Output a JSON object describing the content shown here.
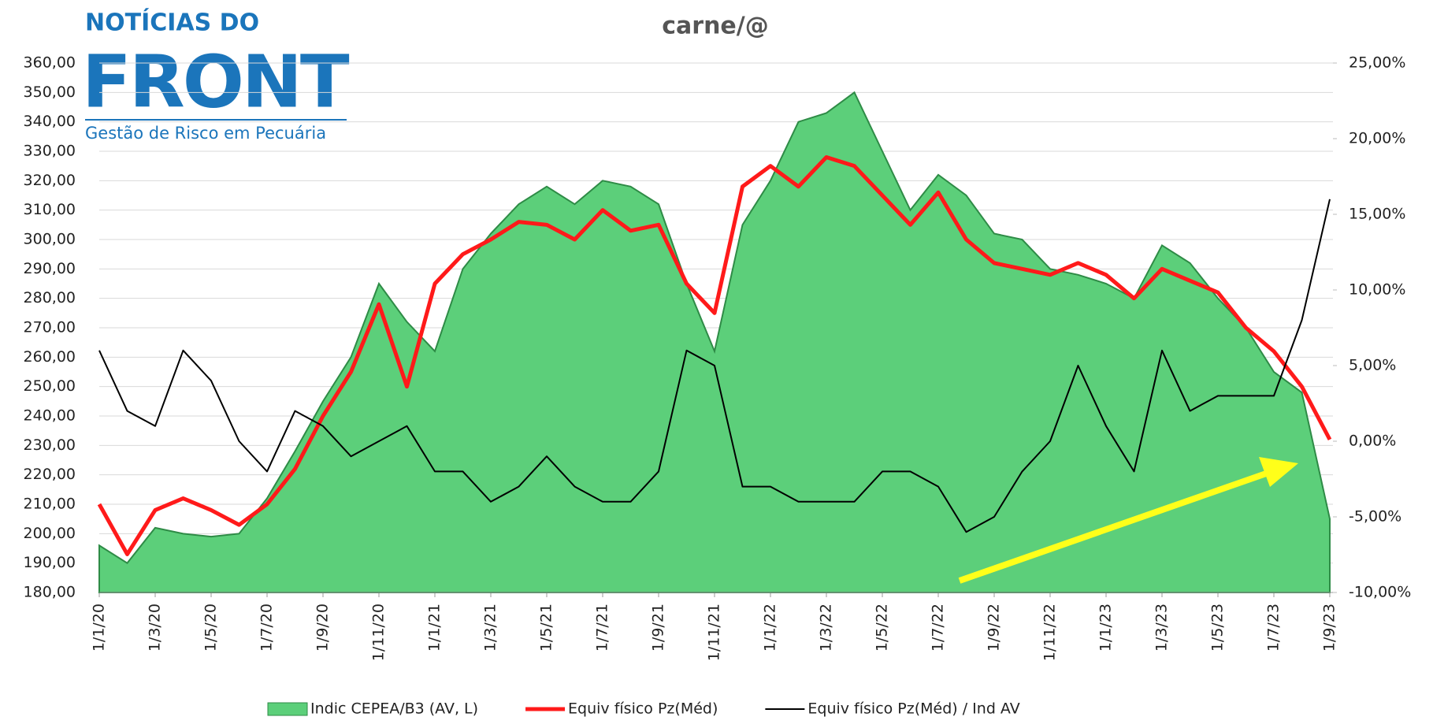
{
  "logo": {
    "top": "NOTÍCIAS DO",
    "brand": "FRONT",
    "tagline": "Gestão de Risco em Pecuária"
  },
  "chart_data": {
    "type": "line",
    "title": "carne/@",
    "categories": [
      "1/1/20",
      null,
      "1/3/20",
      null,
      "1/5/20",
      null,
      "1/7/20",
      null,
      "1/9/20",
      null,
      "1/11/20",
      null,
      "1/1/21",
      null,
      "1/3/21",
      null,
      "1/5/21",
      null,
      "1/7/21",
      null,
      "1/9/21",
      null,
      "1/11/21",
      null,
      "1/1/22",
      null,
      "1/3/22",
      null,
      "1/5/22",
      null,
      "1/7/22",
      null,
      "1/9/22",
      null,
      "1/11/22",
      null,
      "1/1/23",
      null,
      "1/3/23",
      null,
      "1/5/23",
      null,
      "1/7/23",
      null,
      "1/9/23"
    ],
    "series": [
      {
        "name": "Indic CEPEA/B3 (AV, L)",
        "kind": "area",
        "color": "#5ccf7a",
        "values": [
          196,
          190,
          202,
          200,
          199,
          200,
          212,
          228,
          245,
          260,
          285,
          272,
          262,
          290,
          302,
          312,
          318,
          312,
          320,
          318,
          312,
          285,
          262,
          305,
          320,
          340,
          343,
          350,
          330,
          310,
          322,
          315,
          302,
          300,
          290,
          288,
          285,
          280,
          298,
          292,
          280,
          270,
          255,
          248,
          205
        ]
      },
      {
        "name": "Equiv físico Pz(Méd)",
        "kind": "line",
        "color": "#ff1a1a",
        "values": [
          210,
          193,
          208,
          212,
          208,
          203,
          210,
          222,
          240,
          255,
          278,
          250,
          285,
          295,
          300,
          306,
          305,
          300,
          310,
          303,
          305,
          285,
          275,
          318,
          325,
          318,
          328,
          325,
          315,
          305,
          316,
          300,
          292,
          290,
          288,
          292,
          288,
          280,
          290,
          286,
          282,
          270,
          262,
          250,
          232
        ]
      },
      {
        "name": "Equiv físico Pz(Méd) / Ind AV",
        "kind": "line",
        "axis": "y2",
        "color": "#000000",
        "values": [
          6,
          2,
          1,
          6,
          4,
          0,
          -2,
          2,
          1,
          -1,
          0,
          1,
          -2,
          -2,
          -4,
          -3,
          -1,
          -3,
          -4,
          -4,
          -2,
          6,
          5,
          -3,
          -3,
          -4,
          -4,
          -4,
          -2,
          -2,
          -3,
          -6,
          -5,
          -2,
          0,
          5,
          1,
          -2,
          6,
          2,
          3,
          3,
          3,
          8,
          16
        ]
      }
    ],
    "ylim": [
      180,
      360
    ],
    "yticks": [
      {
        "value": 180,
        "label": "180,00"
      },
      {
        "value": 190,
        "label": "190,00"
      },
      {
        "value": 200,
        "label": "200,00"
      },
      {
        "value": 210,
        "label": "210,00"
      },
      {
        "value": 220,
        "label": "220,00"
      },
      {
        "value": 230,
        "label": "230,00"
      },
      {
        "value": 240,
        "label": "240,00"
      },
      {
        "value": 250,
        "label": "250,00"
      },
      {
        "value": 260,
        "label": "260,00"
      },
      {
        "value": 270,
        "label": "270,00"
      },
      {
        "value": 280,
        "label": "280,00"
      },
      {
        "value": 290,
        "label": "290,00"
      },
      {
        "value": 300,
        "label": "300,00"
      },
      {
        "value": 310,
        "label": "310,00"
      },
      {
        "value": 320,
        "label": "320,00"
      },
      {
        "value": 330,
        "label": "330,00"
      },
      {
        "value": 340,
        "label": "340,00"
      },
      {
        "value": 350,
        "label": "350,00"
      },
      {
        "value": 360,
        "label": "360,00"
      }
    ],
    "y2lim": [
      -10,
      25
    ],
    "y2ticks": [
      {
        "value": -10,
        "label": "-10,00%"
      },
      {
        "value": -5,
        "label": "-5,00%"
      },
      {
        "value": 0,
        "label": "0,00%"
      },
      {
        "value": 5,
        "label": "5,00%"
      },
      {
        "value": 10,
        "label": "10,00%"
      },
      {
        "value": 15,
        "label": "15,00%"
      },
      {
        "value": 20,
        "label": "20,00%"
      },
      {
        "value": 25,
        "label": "25,00%"
      }
    ],
    "grid": true
  }
}
